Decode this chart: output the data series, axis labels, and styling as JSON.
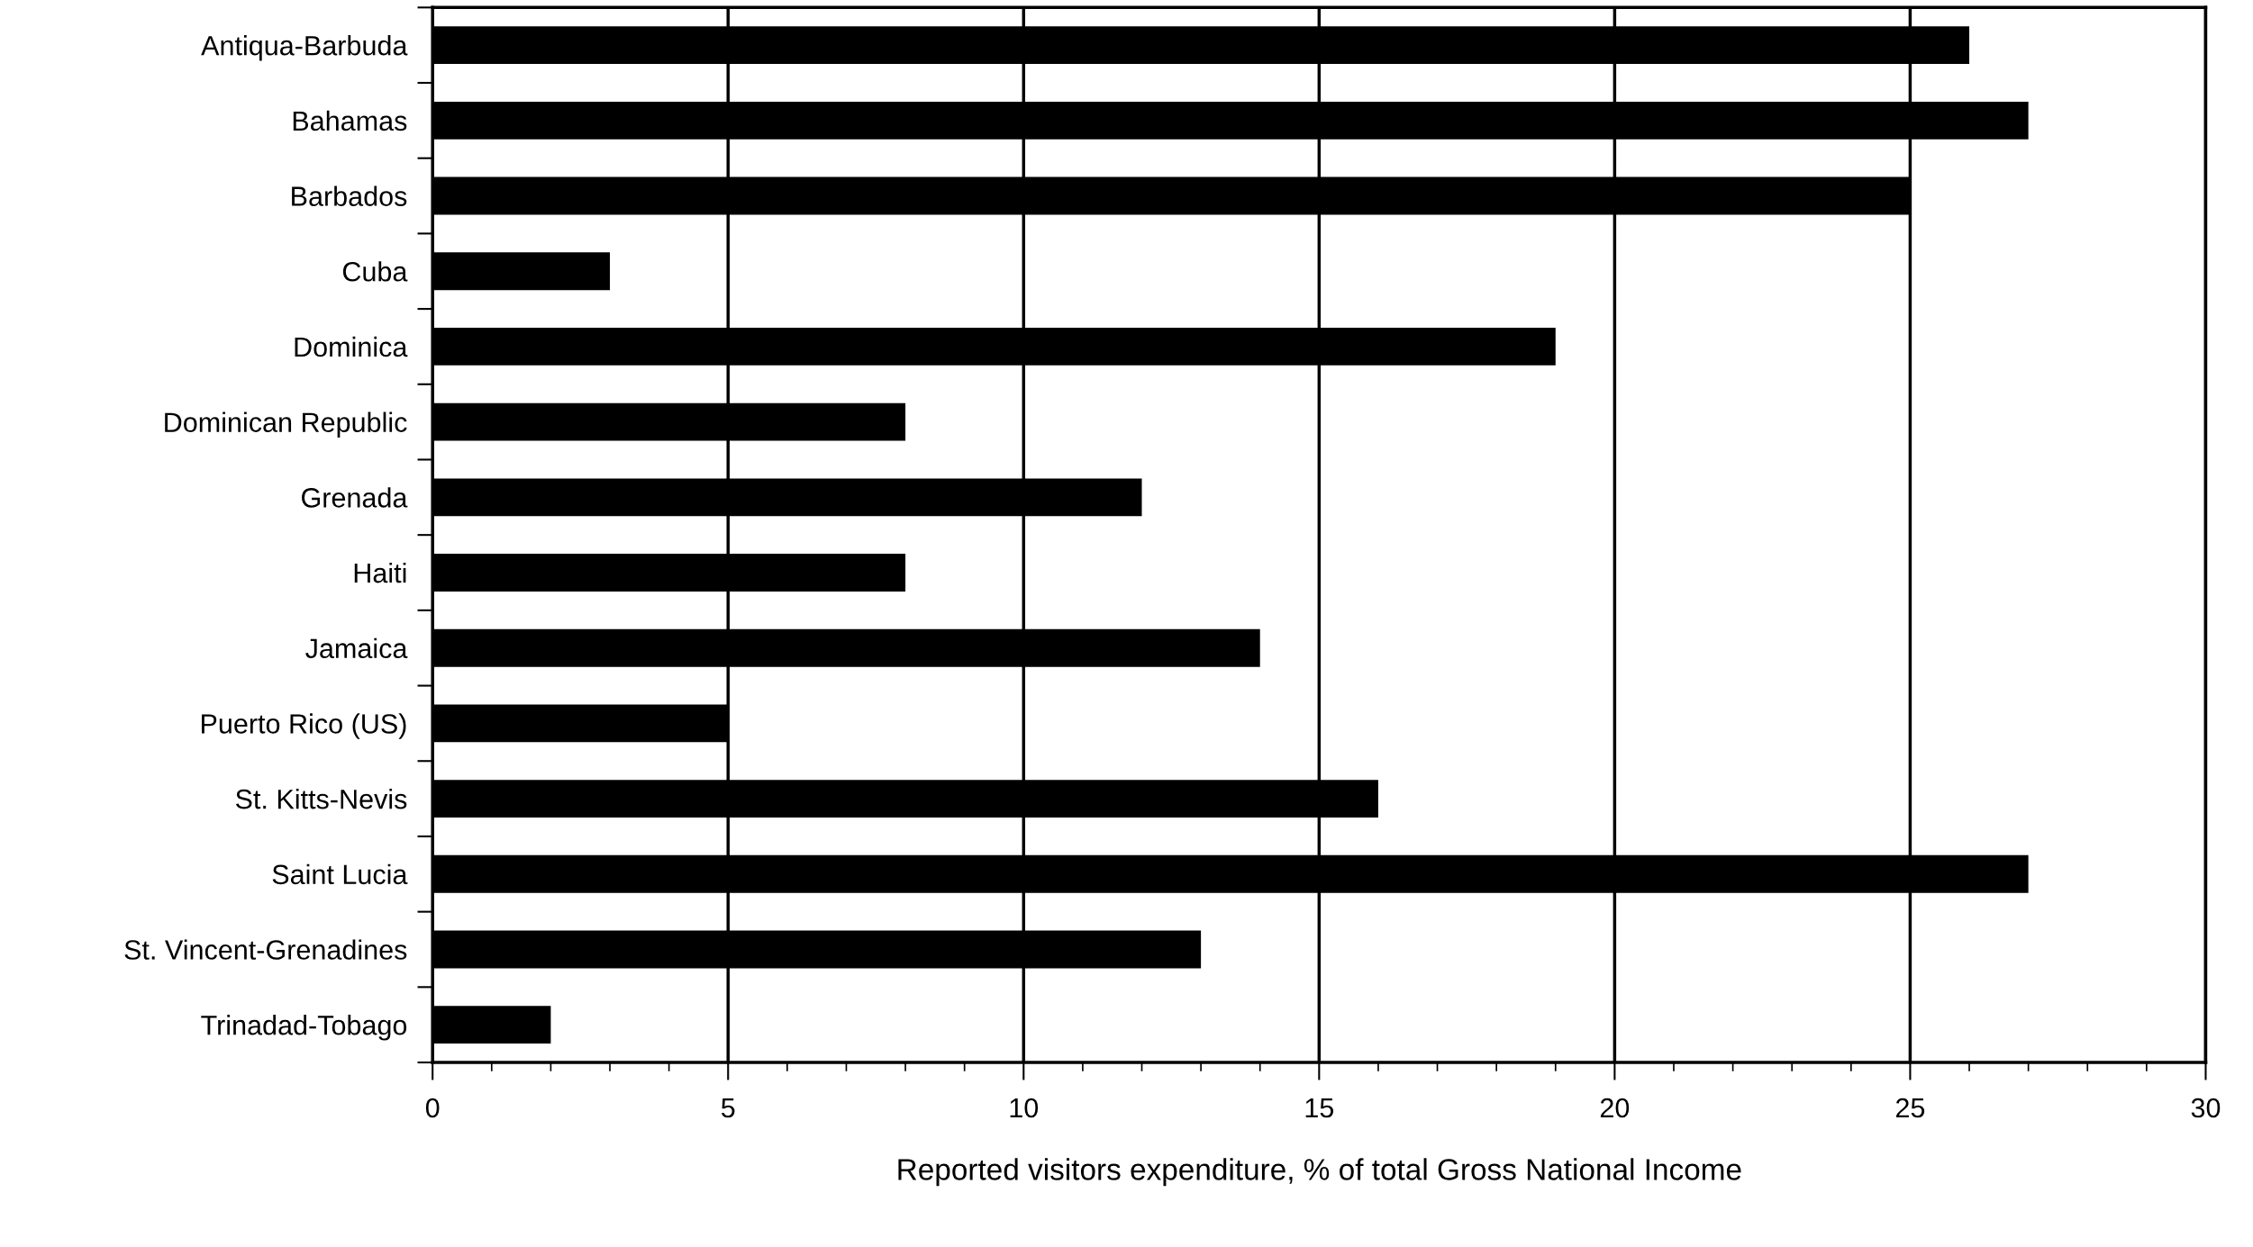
{
  "chart_data": {
    "type": "bar",
    "orientation": "horizontal",
    "xlabel": "Reported visitors expenditure, % of total Gross National Income",
    "categories": [
      "Antiqua-Barbuda",
      "Bahamas",
      "Barbados",
      "Cuba",
      "Dominica",
      "Dominican Republic",
      "Grenada",
      "Haiti",
      "Jamaica",
      "Puerto Rico (US)",
      "St. Kitts-Nevis",
      "Saint Lucia",
      "St. Vincent-Grenadines",
      "Trinadad-Tobago"
    ],
    "values": [
      26,
      27,
      25,
      3,
      19,
      8,
      12,
      8,
      14,
      5,
      16,
      27,
      13,
      2
    ],
    "color": "#000000",
    "xlim": [
      0,
      30
    ],
    "xticks": [
      0,
      5,
      10,
      15,
      20,
      25,
      30
    ],
    "grid": "x",
    "legend": false
  }
}
